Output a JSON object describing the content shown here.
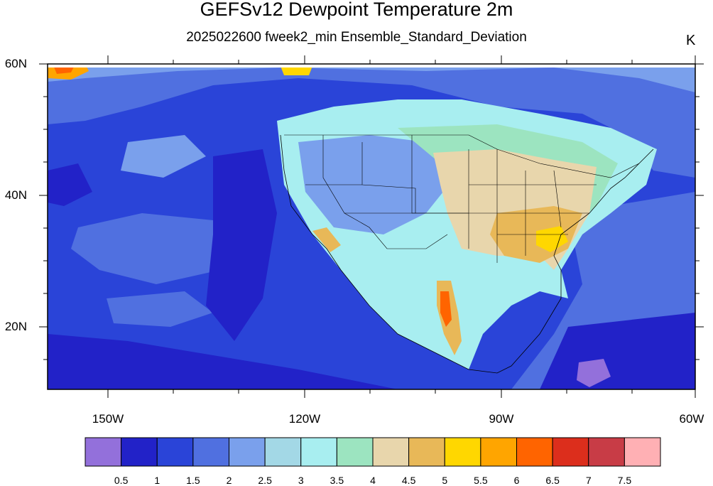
{
  "title": "GEFSv12 Dewpoint Temperature 2m",
  "subtitle": "2025022600 fweek2_min Ensemble_Standard_Deviation",
  "units": "K",
  "lat_labels": [
    "60N",
    "40N",
    "20N"
  ],
  "lon_labels": [
    "150W",
    "120W",
    "90W",
    "60W"
  ],
  "colorbar": {
    "labels": [
      "0.5",
      "1",
      "1.5",
      "2",
      "2.5",
      "3",
      "3.5",
      "4",
      "4.5",
      "5",
      "5.5",
      "6",
      "6.5",
      "7",
      "7.5"
    ],
    "colors": [
      "#9370db",
      "#2222c8",
      "#2a44d8",
      "#5070e0",
      "#7aa0ec",
      "#a3d8e6",
      "#a8eef0",
      "#9ce4c0",
      "#e8d6ac",
      "#e8b858",
      "#ffd700",
      "#ffa500",
      "#ff6400",
      "#dc2e1c",
      "#c83c46",
      "#ffb0b4"
    ]
  }
}
